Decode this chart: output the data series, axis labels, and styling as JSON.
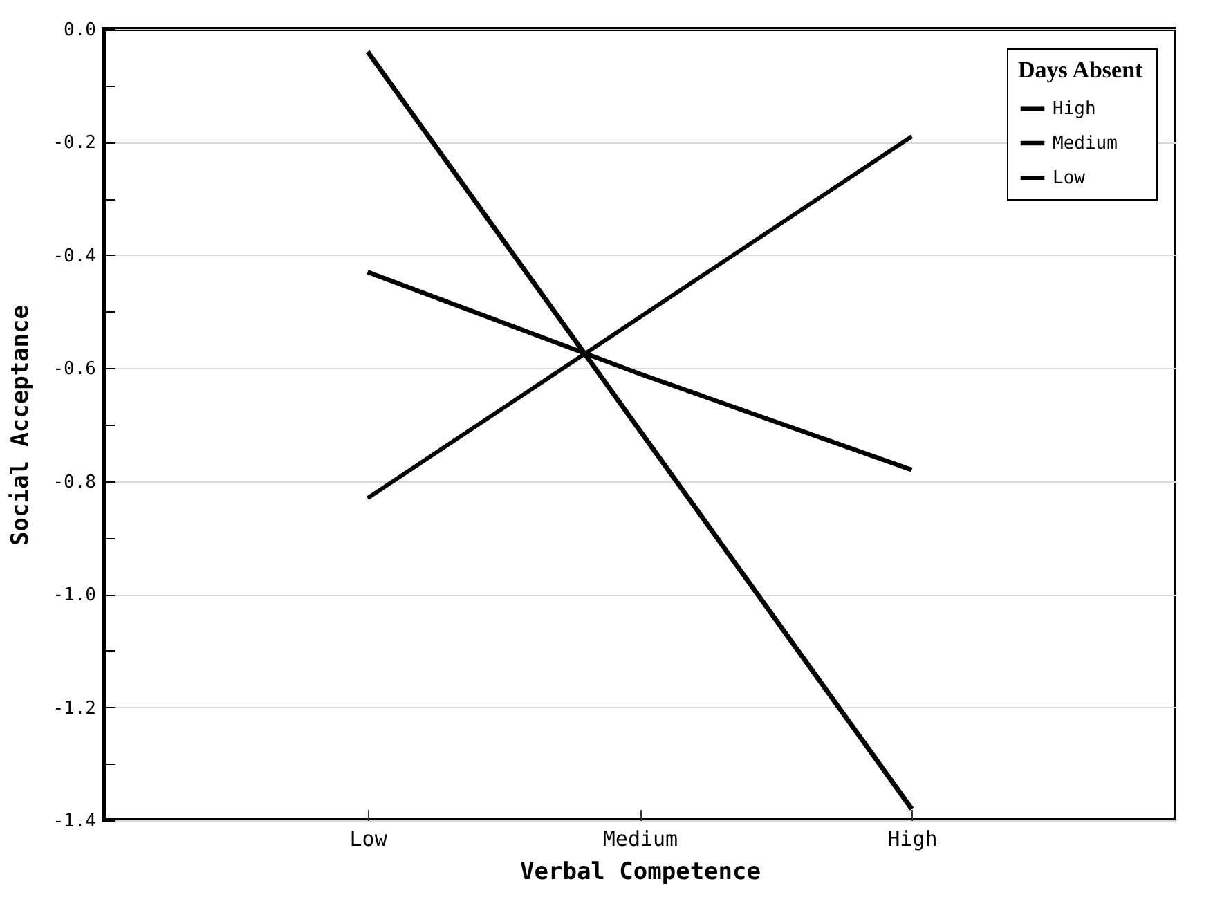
{
  "chart_data": {
    "type": "line",
    "xlabel": "Verbal Competence",
    "ylabel": "Social Acceptance",
    "legend_title": "Days Absent",
    "categories": [
      "Low",
      "Medium",
      "High"
    ],
    "series": [
      {
        "name": "High",
        "color": "#000000",
        "values": [
          -0.04,
          -0.71,
          -1.38
        ]
      },
      {
        "name": "Medium",
        "color": "#000000",
        "values": [
          -0.43,
          -0.61,
          -0.78
        ]
      },
      {
        "name": "Low",
        "color": "#000000",
        "values": [
          -0.83,
          -0.51,
          -0.19
        ]
      }
    ],
    "ylim": [
      -1.4,
      0.0
    ],
    "yticks": [
      {
        "value": 0.0,
        "label": "0.0"
      },
      {
        "value": -0.1,
        "label": null
      },
      {
        "value": -0.2,
        "label": "-0.2"
      },
      {
        "value": -0.3,
        "label": null
      },
      {
        "value": -0.4,
        "label": "-0.4"
      },
      {
        "value": -0.5,
        "label": null
      },
      {
        "value": -0.6,
        "label": "-0.6"
      },
      {
        "value": -0.7,
        "label": null
      },
      {
        "value": -0.8,
        "label": "-0.8"
      },
      {
        "value": -0.9,
        "label": null
      },
      {
        "value": -1.0,
        "label": "-1.0"
      },
      {
        "value": -1.1,
        "label": null
      },
      {
        "value": -1.2,
        "label": "-1.2"
      },
      {
        "value": -1.3,
        "label": null
      },
      {
        "value": -1.4,
        "label": "-1.4"
      }
    ],
    "grid": "y",
    "legend": "top right",
    "marker": "none",
    "line_style": "solid"
  }
}
